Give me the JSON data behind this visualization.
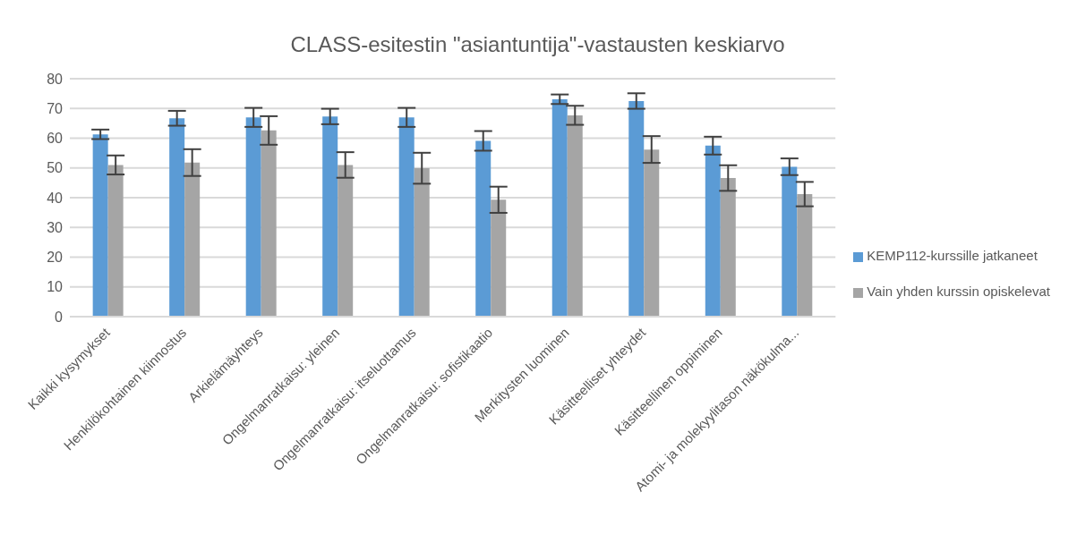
{
  "chart_data": {
    "type": "bar",
    "title": "CLASS-esitestin \"asiantuntija\"-vastausten keskiarvo",
    "categories": [
      "Kaikki kysymykset",
      "Henkilökohtainen kiinnostus",
      "Arkielämäyhteys",
      "Ongelmanratkaisu: yleinen",
      "Ongelmanratkaisu: itseluottamus",
      "Ongelmanratkaisu: sofistikaatio",
      "Merkitysten luominen",
      "Käsitteelliset yhteydet",
      "Käsitteellinen oppiminen",
      "Atomi- ja molekyylitason näkökulma..."
    ],
    "series": [
      {
        "name": "KEMP112-kurssille jatkaneet",
        "color": "#5b9bd5",
        "values": [
          61.3,
          66.7,
          67.0,
          67.3,
          67.0,
          59.1,
          73.1,
          72.5,
          57.5,
          50.4
        ],
        "errors": [
          1.6,
          2.5,
          3.2,
          2.6,
          3.2,
          3.3,
          1.6,
          2.6,
          3.0,
          2.8
        ]
      },
      {
        "name": "Vain yhden kurssin opiskelevat",
        "color": "#a5a5a5",
        "values": [
          51.0,
          51.8,
          62.6,
          51.0,
          49.9,
          39.3,
          67.7,
          56.2,
          46.6,
          41.2
        ],
        "errors": [
          3.2,
          4.5,
          4.8,
          4.3,
          5.2,
          4.4,
          3.2,
          4.5,
          4.3,
          4.1
        ]
      }
    ],
    "ylim": [
      0,
      80
    ],
    "yticks": [
      0,
      10,
      20,
      30,
      40,
      50,
      60,
      70,
      80
    ],
    "grid": "y",
    "legend": "right"
  }
}
